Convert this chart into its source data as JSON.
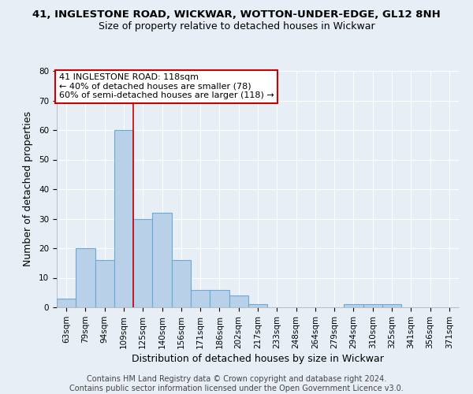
{
  "title1": "41, INGLESTONE ROAD, WICKWAR, WOTTON-UNDER-EDGE, GL12 8NH",
  "title2": "Size of property relative to detached houses in Wickwar",
  "xlabel": "Distribution of detached houses by size in Wickwar",
  "ylabel": "Number of detached properties",
  "bar_labels": [
    "63sqm",
    "79sqm",
    "94sqm",
    "109sqm",
    "125sqm",
    "140sqm",
    "156sqm",
    "171sqm",
    "186sqm",
    "202sqm",
    "217sqm",
    "233sqm",
    "248sqm",
    "264sqm",
    "279sqm",
    "294sqm",
    "310sqm",
    "325sqm",
    "341sqm",
    "356sqm",
    "371sqm"
  ],
  "bar_values": [
    3,
    20,
    16,
    60,
    30,
    32,
    16,
    6,
    6,
    4,
    1,
    0,
    0,
    0,
    0,
    1,
    1,
    1,
    0,
    0,
    0
  ],
  "bar_color": "#b8d0e8",
  "bar_edge_color": "#6aaad4",
  "ylim": [
    0,
    80
  ],
  "yticks": [
    0,
    10,
    20,
    30,
    40,
    50,
    60,
    70,
    80
  ],
  "property_label": "41 INGLESTONE ROAD: 118sqm",
  "annotation_line1": "← 40% of detached houses are smaller (78)",
  "annotation_line2": "60% of semi-detached houses are larger (118) →",
  "annotation_box_color": "#ffffff",
  "annotation_box_edge": "#cc0000",
  "vline_color": "#cc0000",
  "vline_x": 3.5,
  "bg_color": "#e8eef5",
  "grid_color": "#ffffff",
  "footer": "Contains HM Land Registry data © Crown copyright and database right 2024.\nContains public sector information licensed under the Open Government Licence v3.0.",
  "title1_fontsize": 9.5,
  "title2_fontsize": 9,
  "xlabel_fontsize": 9,
  "ylabel_fontsize": 9,
  "footer_fontsize": 7,
  "tick_fontsize": 7.5,
  "ann_fontsize": 8
}
